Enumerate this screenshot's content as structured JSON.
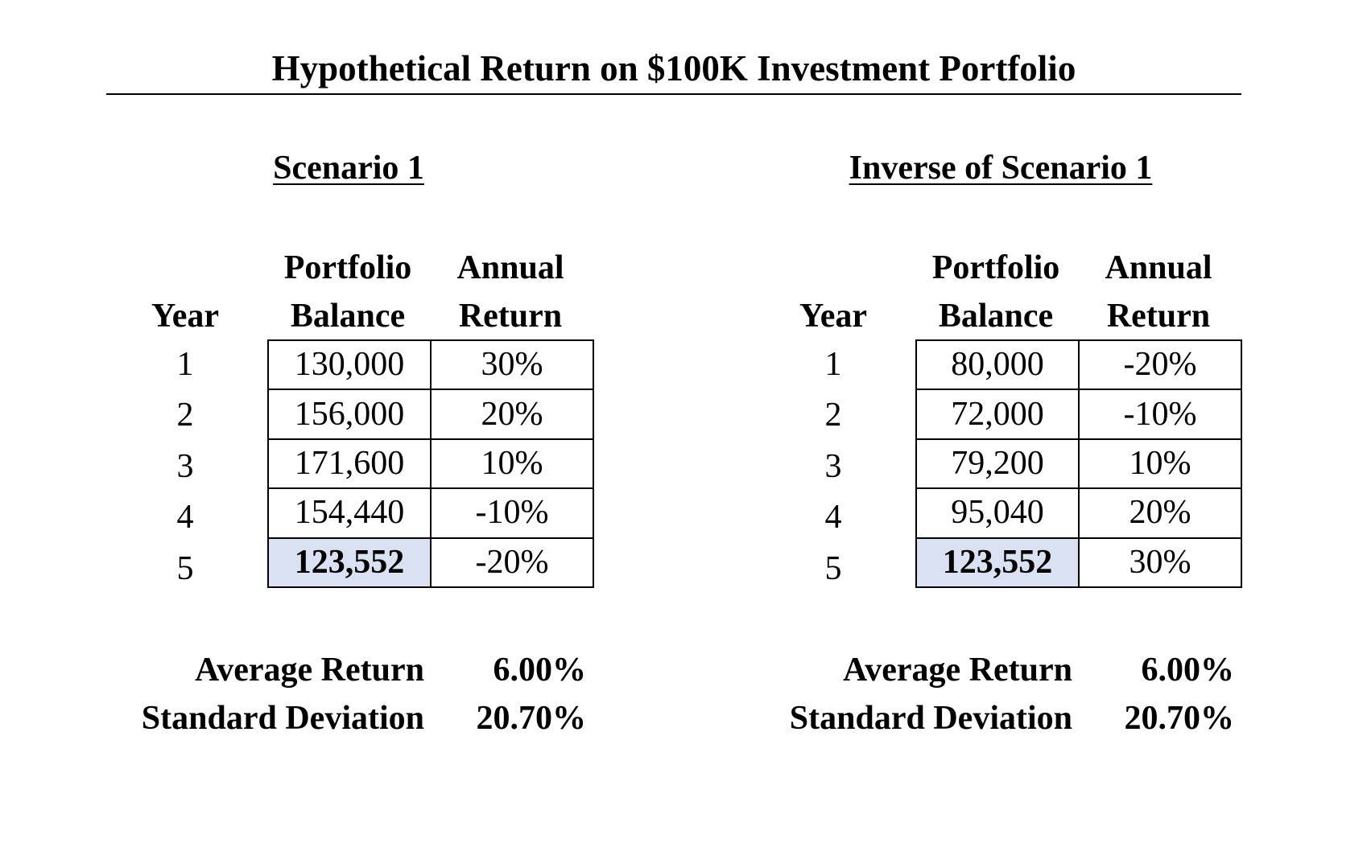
{
  "title": "Hypothetical Return on $100K Investment Portfolio",
  "chart_data": {
    "type": "table",
    "tables": [
      {
        "title": "Scenario 1",
        "headers": {
          "year": "Year",
          "balance": [
            "Portfolio",
            "Balance"
          ],
          "return": [
            "Annual",
            "Return"
          ]
        },
        "rows": [
          {
            "year": "1",
            "balance": "130,000",
            "return": "30%"
          },
          {
            "year": "2",
            "balance": "156,000",
            "return": "20%"
          },
          {
            "year": "3",
            "balance": "171,600",
            "return": "10%"
          },
          {
            "year": "4",
            "balance": "154,440",
            "return": "-10%"
          },
          {
            "year": "5",
            "balance": "123,552",
            "return": "-20%"
          }
        ],
        "stats": [
          {
            "label": "Average Return",
            "value": "6.00%"
          },
          {
            "label": "Standard Deviation",
            "value": "20.70%"
          }
        ]
      },
      {
        "title": "Inverse of Scenario 1",
        "headers": {
          "year": "Year",
          "balance": [
            "Portfolio",
            "Balance"
          ],
          "return": [
            "Annual",
            "Return"
          ]
        },
        "rows": [
          {
            "year": "1",
            "balance": "80,000",
            "return": "-20%"
          },
          {
            "year": "2",
            "balance": "72,000",
            "return": "-10%"
          },
          {
            "year": "3",
            "balance": "79,200",
            "return": "10%"
          },
          {
            "year": "4",
            "balance": "95,040",
            "return": "20%"
          },
          {
            "year": "5",
            "balance": "123,552",
            "return": "30%"
          }
        ],
        "stats": [
          {
            "label": "Average Return",
            "value": "6.00%"
          },
          {
            "label": "Standard Deviation",
            "value": "20.70%"
          }
        ]
      }
    ]
  },
  "colors": {
    "final_balance_highlight": "#d9e1f2",
    "text": "#000000",
    "background": "#ffffff"
  }
}
